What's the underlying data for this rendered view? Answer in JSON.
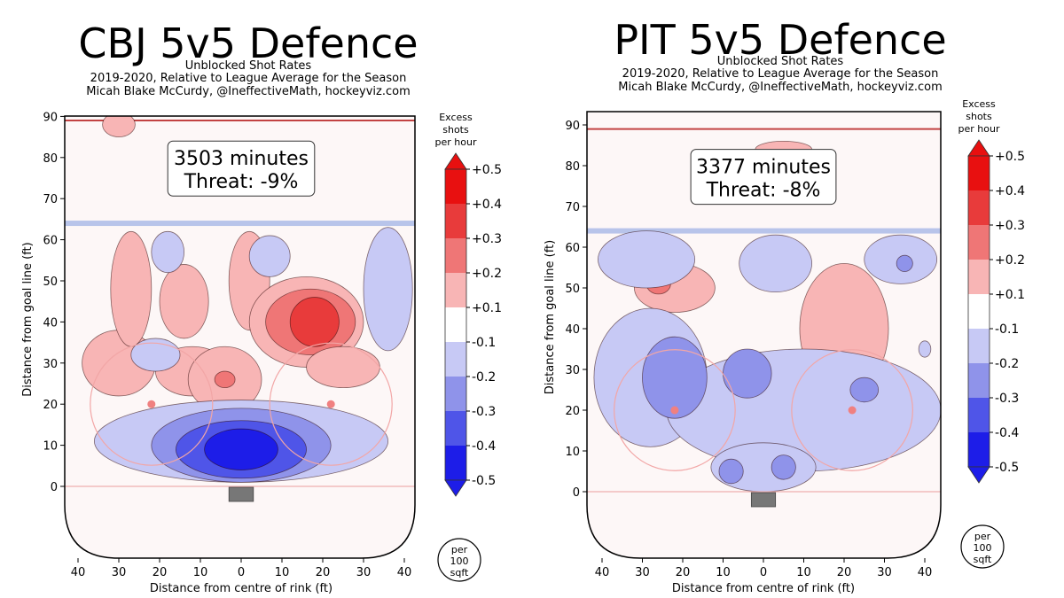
{
  "charts": [
    {
      "team": "CBJ",
      "title": "CBJ 5v5 Defence",
      "subtitle": "Unblocked Shot Rates",
      "season_line": "2019-2020, Relative to League Average for the Season",
      "credit_line": "Micah Blake McCurdy, @IneffectiveMath, hockeyviz.com",
      "minutes_label": "3503 minutes",
      "threat_label": "Threat: -9%",
      "xlabel": "Distance from centre of rink (ft)",
      "ylabel": "Distance from goal line (ft)"
    },
    {
      "team": "PIT",
      "title": "PIT 5v5 Defence",
      "subtitle": "Unblocked Shot Rates",
      "season_line": "2019-2020, Relative to League Average for the Season",
      "credit_line": "Micah Blake McCurdy, @IneffectiveMath, hockeyviz.com",
      "minutes_label": "3377 minutes",
      "threat_label": "Threat: -8%",
      "xlabel": "Distance from centre of rink (ft)",
      "ylabel": "Distance from goal line (ft)"
    }
  ],
  "colorbar": {
    "title_lines": [
      "Excess",
      "shots",
      "per hour"
    ],
    "tick_labels": [
      "+0.5",
      "+0.4",
      "+0.3",
      "+0.2",
      "+0.1",
      "-0.1",
      "-0.2",
      "-0.3",
      "-0.4",
      "-0.5"
    ],
    "unit_lines": [
      "per",
      "100",
      "sqft"
    ]
  },
  "chart_data": [
    {
      "type": "heatmap",
      "title": "CBJ 5v5 Defence",
      "xlabel": "Distance from centre of rink (ft)",
      "ylabel": "Distance from goal line (ft)",
      "xlim": [
        -42,
        42
      ],
      "ylim": [
        -20,
        90
      ],
      "xticks": [
        40,
        30,
        20,
        10,
        0,
        10,
        20,
        30,
        40
      ],
      "yticks": [
        0,
        10,
        20,
        30,
        40,
        50,
        60,
        70,
        80,
        90
      ],
      "blobs": [
        {
          "x": -30,
          "y": 88,
          "rx": 4,
          "ry": 3,
          "v": 0.2
        },
        {
          "x": -30,
          "y": 30,
          "rx": 9,
          "ry": 8,
          "v": 0.2
        },
        {
          "x": -27,
          "y": 48,
          "rx": 5,
          "ry": 14,
          "v": 0.2
        },
        {
          "x": -14,
          "y": 45,
          "rx": 6,
          "ry": 9,
          "v": 0.2
        },
        {
          "x": -12,
          "y": 28,
          "rx": 9,
          "ry": 6,
          "v": 0.2
        },
        {
          "x": -4,
          "y": 26,
          "rx": 9,
          "ry": 8,
          "v": 0.2
        },
        {
          "x": -4,
          "y": 26,
          "rx": 2.5,
          "ry": 2,
          "v": 0.3
        },
        {
          "x": 2,
          "y": 50,
          "rx": 5,
          "ry": 12,
          "v": 0.2
        },
        {
          "x": 16,
          "y": 40,
          "rx": 14,
          "ry": 11,
          "v": 0.2
        },
        {
          "x": 17,
          "y": 40,
          "rx": 11,
          "ry": 8,
          "v": 0.3
        },
        {
          "x": 18,
          "y": 40,
          "rx": 6,
          "ry": 6,
          "v": 0.4
        },
        {
          "x": 25,
          "y": 29,
          "rx": 9,
          "ry": 5,
          "v": 0.2
        },
        {
          "x": -18,
          "y": 57,
          "rx": 4,
          "ry": 5,
          "v": -0.2
        },
        {
          "x": 7,
          "y": 56,
          "rx": 5,
          "ry": 5,
          "v": -0.2
        },
        {
          "x": -21,
          "y": 32,
          "rx": 6,
          "ry": 4,
          "v": -0.2
        },
        {
          "x": 36,
          "y": 48,
          "rx": 6,
          "ry": 15,
          "v": -0.2
        },
        {
          "x": 0,
          "y": 11,
          "rx": 36,
          "ry": 10,
          "v": -0.2
        },
        {
          "x": 0,
          "y": 10,
          "rx": 22,
          "ry": 9,
          "v": -0.3
        },
        {
          "x": 0,
          "y": 9,
          "rx": 16,
          "ry": 7,
          "v": -0.4
        },
        {
          "x": 0,
          "y": 9,
          "rx": 9,
          "ry": 5,
          "v": -0.5
        }
      ]
    },
    {
      "type": "heatmap",
      "title": "PIT 5v5 Defence",
      "xlabel": "Distance from centre of rink (ft)",
      "ylabel": "Distance from goal line (ft)",
      "xlim": [
        -42,
        42
      ],
      "ylim": [
        -20,
        90
      ],
      "xticks": [
        40,
        30,
        20,
        10,
        0,
        10,
        20,
        30,
        40
      ],
      "yticks": [
        0,
        10,
        20,
        30,
        40,
        50,
        60,
        70,
        80,
        90
      ],
      "blobs": [
        {
          "x": 5,
          "y": 84,
          "rx": 7,
          "ry": 2,
          "v": 0.2
        },
        {
          "x": -22,
          "y": 50,
          "rx": 10,
          "ry": 6,
          "v": 0.2
        },
        {
          "x": -26,
          "y": 51,
          "rx": 3,
          "ry": 2.5,
          "v": 0.3
        },
        {
          "x": 20,
          "y": 40,
          "rx": 11,
          "ry": 16,
          "v": 0.2
        },
        {
          "x": -29,
          "y": 57,
          "rx": 12,
          "ry": 7,
          "v": -0.2
        },
        {
          "x": 3,
          "y": 56,
          "rx": 9,
          "ry": 7,
          "v": -0.2
        },
        {
          "x": 34,
          "y": 57,
          "rx": 9,
          "ry": 6,
          "v": -0.2
        },
        {
          "x": -28,
          "y": 28,
          "rx": 14,
          "ry": 17,
          "v": -0.2
        },
        {
          "x": 10,
          "y": 20,
          "rx": 34,
          "ry": 15,
          "v": -0.2
        },
        {
          "x": 0,
          "y": 6,
          "rx": 13,
          "ry": 6,
          "v": -0.2
        },
        {
          "x": -22,
          "y": 28,
          "rx": 8,
          "ry": 10,
          "v": -0.3
        },
        {
          "x": -4,
          "y": 29,
          "rx": 6,
          "ry": 6,
          "v": -0.3
        },
        {
          "x": 25,
          "y": 25,
          "rx": 3.5,
          "ry": 3,
          "v": -0.3
        },
        {
          "x": -8,
          "y": 5,
          "rx": 3,
          "ry": 3,
          "v": -0.3
        },
        {
          "x": 5,
          "y": 6,
          "rx": 3,
          "ry": 3,
          "v": -0.3
        },
        {
          "x": 35,
          "y": 56,
          "rx": 2,
          "ry": 2,
          "v": -0.3
        },
        {
          "x": 40,
          "y": 35,
          "rx": 1.5,
          "ry": 2,
          "v": -0.2
        }
      ]
    }
  ]
}
